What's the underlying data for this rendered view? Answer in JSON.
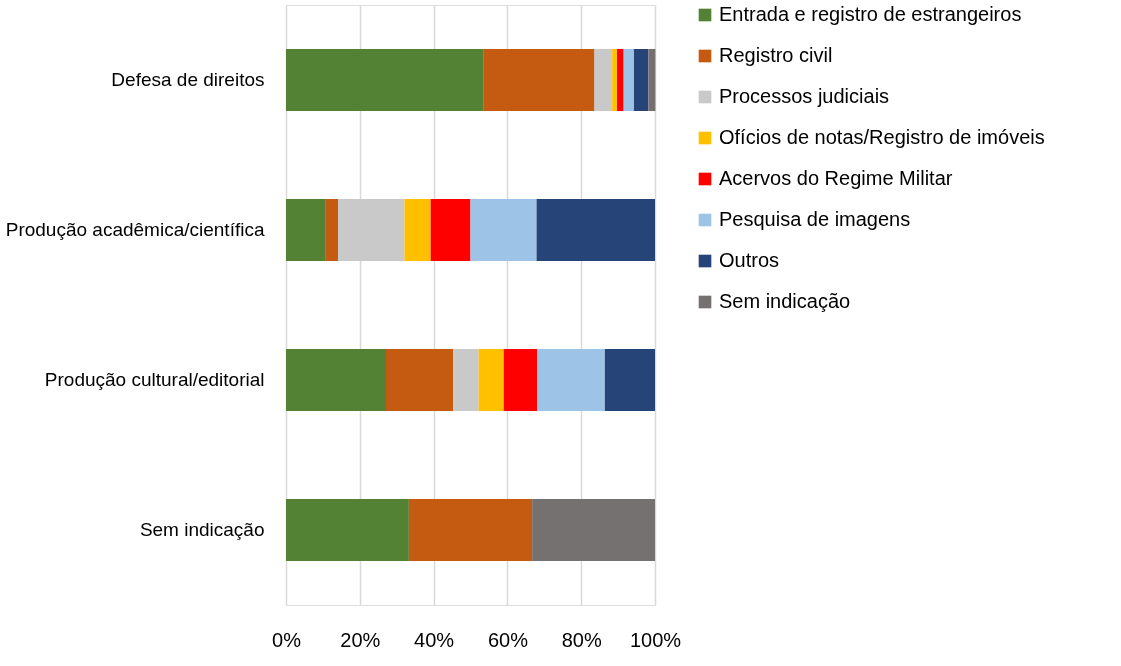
{
  "chart_data": {
    "type": "bar",
    "orientation": "horizontal",
    "stacked": true,
    "categories": [
      "Defesa de direitos",
      "Produção acadêmica/científica",
      "Produção cultural/editorial",
      "Sem indicação"
    ],
    "series": [
      {
        "name": "Entrada e registro de estrangeiros",
        "color": "#548235",
        "values": [
          53.6,
          10.6,
          27.1,
          33.3
        ]
      },
      {
        "name": "Registro civil",
        "color": "#c55a11",
        "values": [
          30.0,
          3.5,
          18.2,
          33.4
        ]
      },
      {
        "name": "Processos judiciais",
        "color": "#c9c9c9",
        "values": [
          4.8,
          18.0,
          6.9,
          null
        ]
      },
      {
        "name": "Ofícios de notas/Registro de imóveis",
        "color": "#ffc000",
        "values": [
          1.3,
          7.1,
          6.8,
          null
        ]
      },
      {
        "name": "Acervos do Regime Militar",
        "color": "#ff0000",
        "values": [
          1.8,
          10.8,
          9.1,
          null
        ]
      },
      {
        "name": "Pesquisa de imagens",
        "color": "#9dc3e6",
        "values": [
          2.8,
          17.9,
          18.3,
          null
        ]
      },
      {
        "name": "Outros",
        "color": "#264478",
        "values": [
          3.9,
          32.1,
          13.6,
          null
        ]
      },
      {
        "name": "Sem indicação",
        "color": "#767171",
        "values": [
          1.9,
          null,
          null,
          33.3
        ]
      }
    ],
    "xlim": [
      0,
      100
    ],
    "xticks": [
      {
        "value": 0,
        "label": "0%"
      },
      {
        "value": 20,
        "label": "20%"
      },
      {
        "value": 40,
        "label": "40%"
      },
      {
        "value": 60,
        "label": "60%"
      },
      {
        "value": 80,
        "label": "80%"
      },
      {
        "value": 100,
        "label": "100%"
      }
    ],
    "grid": "x",
    "legend": "right"
  }
}
